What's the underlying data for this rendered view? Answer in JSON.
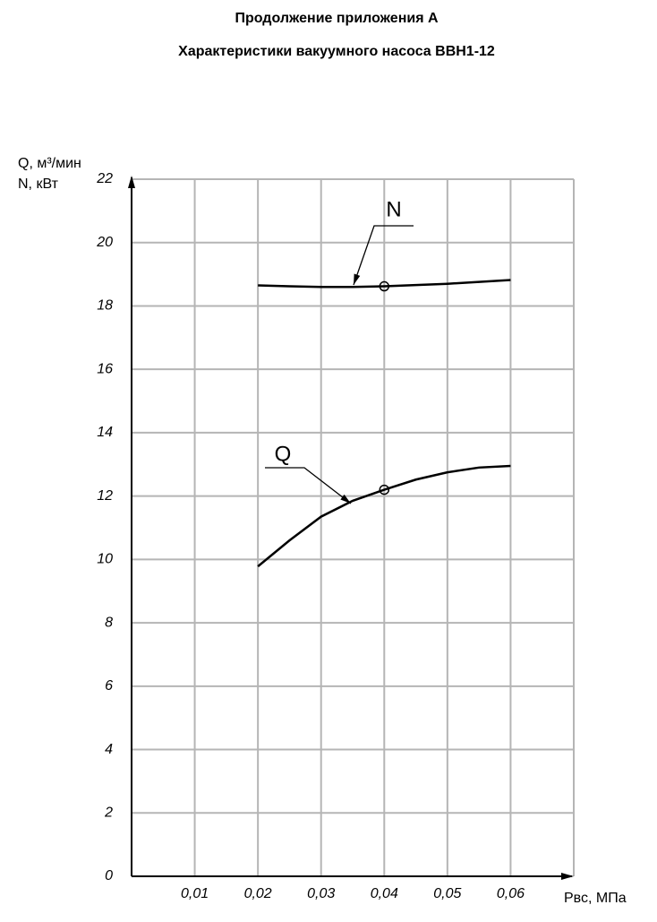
{
  "chart_data": {
    "type": "line",
    "title": "Продолжение приложения А",
    "subtitle": "Характеристики вакуумного насоса ВВН1-12",
    "y_label": [
      "Q, м³/мин",
      "N, кВт"
    ],
    "x_label": "Рвс, МПа",
    "xlim": [
      0,
      0.07
    ],
    "ylim": [
      0,
      22
    ],
    "xticks": [
      {
        "value": 0.01,
        "label": "0,01"
      },
      {
        "value": 0.02,
        "label": "0,02"
      },
      {
        "value": 0.03,
        "label": "0,03"
      },
      {
        "value": 0.04,
        "label": "0,04"
      },
      {
        "value": 0.05,
        "label": "0,05"
      },
      {
        "value": 0.06,
        "label": "0,06"
      }
    ],
    "yticks": [
      0,
      2,
      4,
      6,
      8,
      10,
      12,
      14,
      16,
      18,
      20,
      22
    ],
    "grid": true,
    "x": [
      0.02,
      0.025,
      0.03,
      0.035,
      0.04,
      0.045,
      0.05,
      0.055,
      0.06
    ],
    "series": [
      {
        "name": "N",
        "color": "#000000",
        "values": [
          18.65,
          18.62,
          18.6,
          18.6,
          18.62,
          18.66,
          18.7,
          18.76,
          18.82
        ],
        "highlight": {
          "x": 0.04,
          "y": 18.62
        }
      },
      {
        "name": "Q",
        "color": "#000000",
        "values": [
          9.78,
          10.6,
          11.35,
          11.85,
          12.2,
          12.52,
          12.75,
          12.9,
          12.95
        ],
        "highlight": {
          "x": 0.04,
          "y": 12.2
        }
      }
    ]
  }
}
